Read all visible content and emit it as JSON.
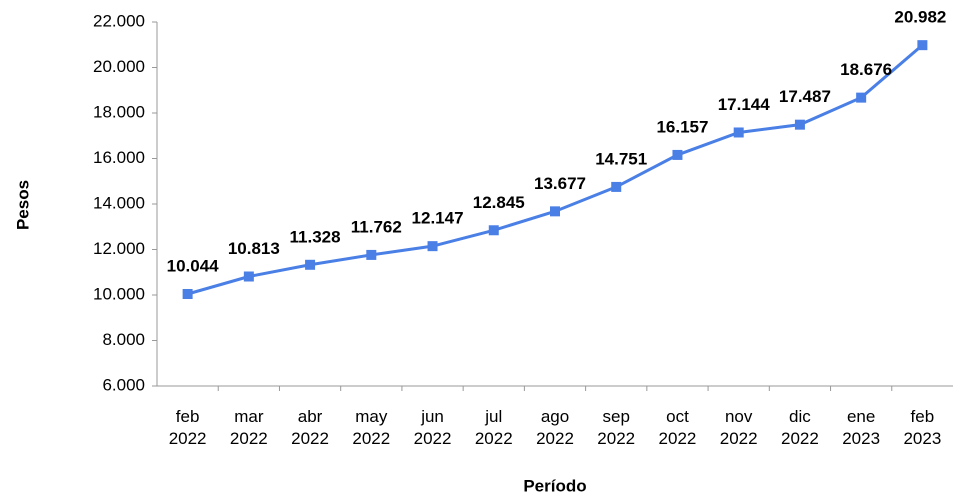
{
  "chart_data": {
    "type": "line",
    "x_label": "Período",
    "y_label": "Pesos",
    "categories": [
      "feb 2022",
      "mar 2022",
      "abr 2022",
      "may 2022",
      "jun 2022",
      "jul 2022",
      "ago 2022",
      "sep 2022",
      "oct 2022",
      "nov 2022",
      "dic 2022",
      "ene 2023",
      "feb 2023"
    ],
    "series": [
      {
        "name": "Pesos",
        "color": "#4a7fe6",
        "values": [
          10044,
          10813,
          11328,
          11762,
          12147,
          12845,
          13677,
          14751,
          16157,
          17144,
          17487,
          18676,
          20982
        ],
        "value_labels": [
          "10.044",
          "10.813",
          "11.328",
          "11.762",
          "12.147",
          "12.845",
          "13.677",
          "14.751",
          "16.157",
          "17.144",
          "17.487",
          "18.676",
          "20.982"
        ]
      }
    ],
    "ylim": [
      6000,
      22000
    ],
    "yticks": [
      {
        "value": 6000,
        "label": "6.000"
      },
      {
        "value": 8000,
        "label": "8.000"
      },
      {
        "value": 10000,
        "label": "10.000"
      },
      {
        "value": 12000,
        "label": "12.000"
      },
      {
        "value": 14000,
        "label": "14.000"
      },
      {
        "value": 16000,
        "label": "16.000"
      },
      {
        "value": 18000,
        "label": "18.000"
      },
      {
        "value": 20000,
        "label": "20.000"
      },
      {
        "value": 22000,
        "label": "22.000"
      }
    ],
    "grid": false
  }
}
